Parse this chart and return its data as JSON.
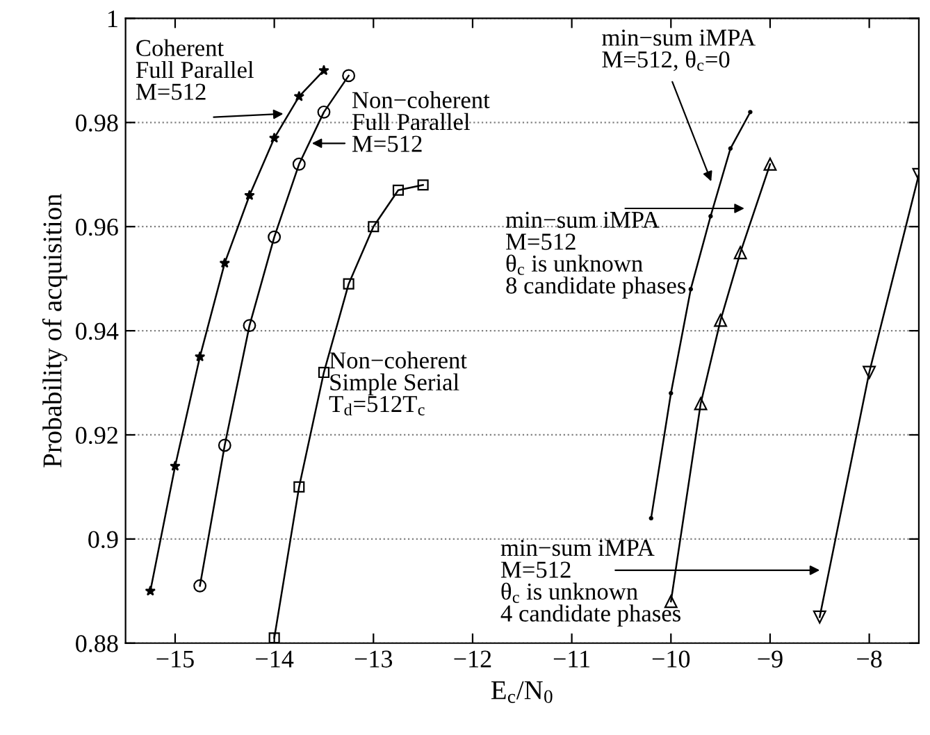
{
  "chart_data": {
    "type": "line",
    "xlabel": "E$_{c}$/N$_{0}$",
    "ylabel": "Probability of acquisition",
    "xlim": [
      -15.5,
      -7.5
    ],
    "ylim": [
      0.88,
      1
    ],
    "xticks": [
      -15,
      -14,
      -13,
      -12,
      -11,
      -10,
      -9,
      -8
    ],
    "yticks": [
      0.88,
      0.9,
      0.92,
      0.94,
      0.96,
      0.98,
      1
    ],
    "grid": "y",
    "line_style": "solid",
    "series": [
      {
        "color": "#000000",
        "marker": "star",
        "x": [
          -15.25,
          -15,
          -14.75,
          -14.5,
          -14.25,
          -14,
          -13.75,
          -13.5
        ],
        "values": [
          0.89,
          0.914,
          0.935,
          0.953,
          0.966,
          0.977,
          0.985,
          0.99
        ]
      },
      {
        "color": "#000000",
        "marker": "circle",
        "x": [
          -14.75,
          -14.5,
          -14.25,
          -14,
          -13.75,
          -13.5,
          -13.25
        ],
        "values": [
          0.891,
          0.918,
          0.941,
          0.958,
          0.972,
          0.982,
          0.989
        ]
      },
      {
        "color": "#000000",
        "marker": "square",
        "x": [
          -14,
          -13.75,
          -13.5,
          -13.25,
          -13,
          -12.75,
          -12.5
        ],
        "values": [
          0.881,
          0.91,
          0.932,
          0.949,
          0.96,
          0.967,
          0.968
        ]
      },
      {
        "color": "#000000",
        "marker": "point",
        "x": [
          -10.2,
          -10.0,
          -9.8,
          -9.6,
          -9.4,
          -9.2
        ],
        "values": [
          0.904,
          0.928,
          0.948,
          0.962,
          0.975,
          0.982
        ]
      },
      {
        "color": "#000000",
        "marker": "triangle",
        "x": [
          -10,
          -9.7,
          -9.5,
          -9.3,
          -9.0
        ],
        "values": [
          0.888,
          0.926,
          0.942,
          0.955,
          0.972
        ]
      },
      {
        "color": "#000000",
        "marker": "triangle_down",
        "x": [
          -8.5,
          -8.0,
          -7.5
        ],
        "values": [
          0.885,
          0.932,
          0.97
        ]
      }
    ],
    "annotations": [
      {
        "text": "Coherent\nFull Parallel\nM=512",
        "x": -13.87,
        "y": 0.9817
      },
      {
        "text": "Non−coherent\nFull Parallel\nM=512",
        "x": -13.66,
        "y": 0.976
      },
      "Non−coherent\nSimple Serial\nT$_{d}$=512T$_{c}$",
      {
        "text": "min−sum iMPA\nM=512, θ$_{c}$=0",
        "x": -9.58,
        "y": 0.968
      },
      {
        "text": "min−sum iMPA\nM=512\nθ$_{c}$ is unknown\n8 candidate phases",
        "x": -9.22,
        "y": 0.9635
      },
      {
        "text": "min−sum iMPA\nM=512\nθ$_{c}$ is unknown\n4 candidate phases",
        "x": -8.46,
        "y": 0.894
      }
    ]
  }
}
